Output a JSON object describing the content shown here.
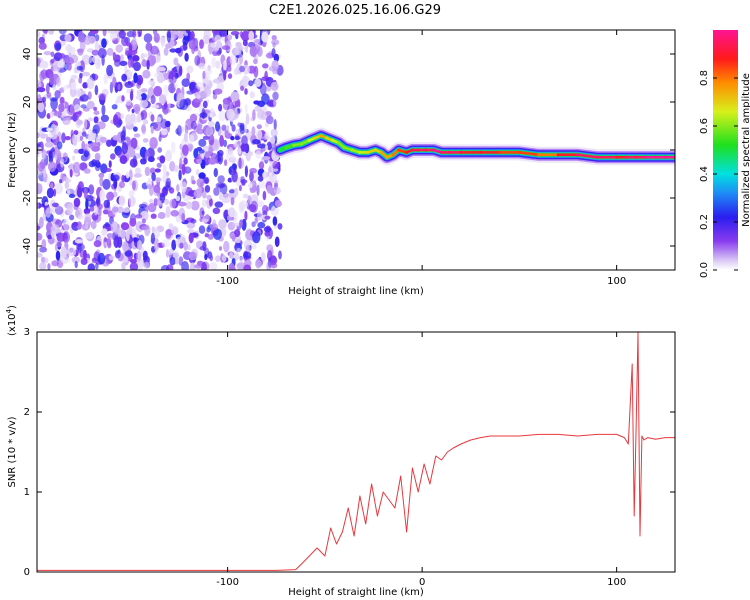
{
  "title": "C2E1.2026.025.16.06.G29",
  "colors": {
    "frame": "#000000",
    "snr_line": "#e8383d",
    "background": "#ffffff"
  },
  "chart_data": [
    {
      "type": "heatmap",
      "name": "spectrogram",
      "xlabel": "Height of straight line (km)",
      "ylabel": "Frequency (Hz)",
      "xlim": [
        -198,
        130
      ],
      "ylim": [
        -50,
        50
      ],
      "xticks": [
        -100,
        0,
        100
      ],
      "xtick_labels": [
        "-100",
        "",
        "100"
      ],
      "yticks": [
        -40,
        -20,
        0,
        20,
        40
      ],
      "ytick_labels": [
        "-40",
        "-20",
        "0",
        "20",
        "40"
      ],
      "noise_region_km": [
        -198,
        -73
      ],
      "signal_track": {
        "x_km": [
          -73,
          -70,
          -66,
          -62,
          -58,
          -55,
          -52,
          -49,
          -46,
          -43,
          -40,
          -36,
          -32,
          -28,
          -24,
          -21,
          -18,
          -15,
          -12,
          -8,
          -5,
          -2,
          2,
          6,
          10,
          14,
          20,
          30,
          40,
          50,
          60,
          70,
          80,
          90,
          100,
          105,
          110,
          115,
          120,
          125,
          130
        ],
        "freq_hz": [
          0,
          1,
          2,
          2.5,
          4,
          5,
          6,
          5,
          4,
          3,
          1,
          0,
          -1,
          -1,
          0,
          -1,
          -3,
          -2,
          0,
          -1,
          0,
          0,
          0,
          0,
          -1,
          -1,
          -1,
          -1,
          -1,
          -1,
          -2,
          -2,
          -2,
          -3,
          -3,
          -3,
          -3,
          -3,
          -3,
          -3,
          -3
        ],
        "normalized_amplitude": [
          0.5,
          0.55,
          0.6,
          0.6,
          0.65,
          0.7,
          0.75,
          0.7,
          0.65,
          0.6,
          0.6,
          0.62,
          0.65,
          0.7,
          0.7,
          0.75,
          0.75,
          0.8,
          0.85,
          0.9,
          0.95,
          0.95,
          0.95,
          1.0,
          0.95,
          0.95,
          0.9,
          0.9,
          0.85,
          0.85,
          0.8,
          0.9,
          0.95,
          0.95,
          0.9,
          0.95,
          0.95,
          1.0,
          1.0,
          1.0,
          1.0
        ]
      },
      "colorbar": {
        "label": "Normalized spectral amplitude",
        "range": [
          0.0,
          1.0
        ],
        "ticks": [
          0.0,
          0.2,
          0.4,
          0.6,
          0.8
        ],
        "tick_labels": [
          "0.0",
          "0.2",
          "0.4",
          "0.6",
          "0.8"
        ]
      }
    },
    {
      "type": "line",
      "name": "snr",
      "xlabel": "Height of straight line (km)",
      "ylabel": "SNR (10 * v/v)",
      "ymultiplier_label": "(x10",
      "ymultiplier_exp": "4",
      "ymultiplier_close": ")",
      "xlim": [
        -198,
        130
      ],
      "ylim": [
        0,
        3
      ],
      "xticks": [
        -100,
        0,
        100
      ],
      "xtick_labels": [
        "-100",
        "0",
        "100"
      ],
      "yticks": [
        0,
        1,
        2,
        3
      ],
      "ytick_labels": [
        "0",
        "1",
        "2",
        "3"
      ],
      "x": [
        -198,
        -150,
        -100,
        -75,
        -65,
        -62,
        -58,
        -54,
        -50,
        -47,
        -44,
        -41,
        -38,
        -35,
        -32,
        -29,
        -26,
        -23,
        -20,
        -17,
        -14,
        -11,
        -8,
        -5,
        -2,
        1,
        4,
        7,
        10,
        13,
        16,
        20,
        25,
        30,
        35,
        40,
        50,
        60,
        70,
        80,
        90,
        100,
        104,
        106,
        108,
        109,
        110,
        111,
        112,
        113,
        114,
        116,
        120,
        125,
        130
      ],
      "y": [
        0.02,
        0.02,
        0.02,
        0.02,
        0.03,
        0.1,
        0.2,
        0.3,
        0.2,
        0.55,
        0.35,
        0.5,
        0.8,
        0.45,
        0.95,
        0.6,
        1.1,
        0.7,
        1.0,
        0.9,
        0.8,
        1.2,
        0.5,
        1.3,
        1.0,
        1.35,
        1.1,
        1.45,
        1.4,
        1.5,
        1.55,
        1.6,
        1.65,
        1.68,
        1.7,
        1.7,
        1.7,
        1.72,
        1.72,
        1.7,
        1.72,
        1.72,
        1.68,
        1.6,
        2.6,
        0.7,
        1.8,
        3.0,
        0.45,
        1.7,
        1.65,
        1.68,
        1.66,
        1.68,
        1.68
      ]
    }
  ]
}
